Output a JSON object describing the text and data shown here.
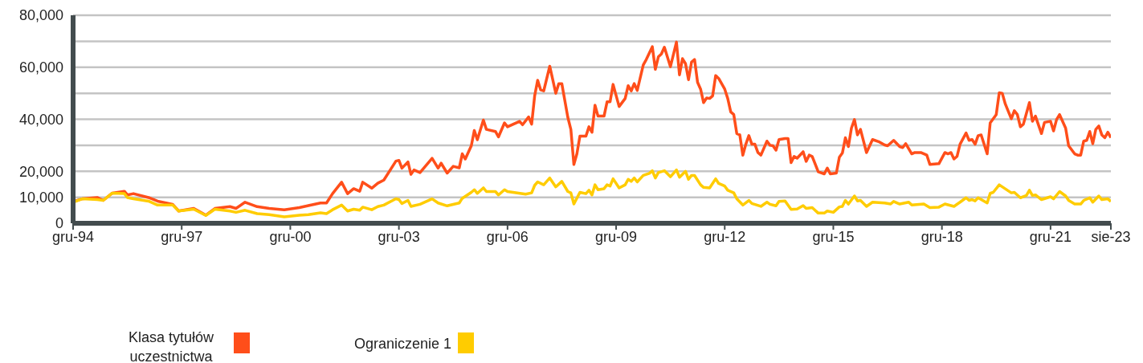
{
  "chart_data": {
    "type": "line",
    "xlim": [
      "1994-12",
      "2023-08"
    ],
    "ylim": [
      0,
      80000
    ],
    "xticks": [
      {
        "value": "1994-12",
        "label": "gru-94"
      },
      {
        "value": "1997-12",
        "label": "gru-97"
      },
      {
        "value": "2000-12",
        "label": "gru-00"
      },
      {
        "value": "2003-12",
        "label": "gru-03"
      },
      {
        "value": "2006-12",
        "label": "gru-06"
      },
      {
        "value": "2009-12",
        "label": "gru-09"
      },
      {
        "value": "2012-12",
        "label": "gru-12"
      },
      {
        "value": "2015-12",
        "label": "gru-15"
      },
      {
        "value": "2018-12",
        "label": "gru-18"
      },
      {
        "value": "2021-12",
        "label": "gru-21"
      },
      {
        "value": "2023-08",
        "label": "sie-23"
      }
    ],
    "yticks": [
      0,
      {
        "value": 10000,
        "label": "10,000"
      },
      {
        "value": 20000,
        "label": "20,000"
      },
      {
        "value": 30000,
        "label": null
      },
      {
        "value": 40000,
        "label": "40,000"
      },
      {
        "value": 50000,
        "label": null
      },
      {
        "value": 60000,
        "label": "60,000"
      },
      {
        "value": 70000,
        "label": null
      },
      {
        "value": 80000,
        "label": "80,000"
      }
    ],
    "grid": "y",
    "legend": "bottom",
    "marker": "none",
    "line_style": "solid",
    "series": [
      {
        "name": "Klasa tytułów uczestnictwa",
        "color": "#ff4e1a",
        "x": [
          "1994-12",
          "1995-03",
          "1995-08",
          "1995-10",
          "1996-01",
          "1996-05",
          "1996-06",
          "1996-08",
          "1997-01",
          "1997-04",
          "1997-09",
          "1997-11",
          "1998-04",
          "1998-08",
          "1998-11",
          "1999-04",
          "1999-06",
          "1999-09",
          "2000-01",
          "2000-05",
          "2000-10",
          "2001-03",
          "2001-06",
          "2001-10",
          "2001-12",
          "2002-02",
          "2002-05",
          "2002-07",
          "2002-09",
          "2002-11",
          "2002-12",
          "2003-03",
          "2003-05",
          "2003-07",
          "2003-11",
          "2003-12",
          "2004-01",
          "2004-03",
          "2004-04",
          "2004-05",
          "2004-07",
          "2004-11",
          "2005-01",
          "2005-02",
          "2005-04",
          "2005-06",
          "2005-08",
          "2005-09",
          "2005-10",
          "2005-12",
          "2006-01",
          "2006-02",
          "2006-04",
          "2006-05",
          "2006-08",
          "2006-09",
          "2006-11",
          "2006-12",
          "2007-04",
          "2007-05",
          "2007-07",
          "2007-08",
          "2007-09",
          "2007-10",
          "2007-11",
          "2007-12",
          "2008-02",
          "2008-04",
          "2008-05",
          "2008-06",
          "2008-08",
          "2008-09",
          "2008-10",
          "2008-11",
          "2008-12",
          "2009-02",
          "2009-03",
          "2009-04",
          "2009-05",
          "2009-06",
          "2009-08",
          "2009-09",
          "2009-10",
          "2009-11",
          "2010-01",
          "2010-03",
          "2010-04",
          "2010-05",
          "2010-06",
          "2010-07",
          "2010-09",
          "2010-10",
          "2010-12",
          "2011-01",
          "2011-02",
          "2011-03",
          "2011-04",
          "2011-06",
          "2011-08",
          "2011-09",
          "2011-10",
          "2011-11",
          "2011-12",
          "2012-01",
          "2012-02",
          "2012-03",
          "2012-04",
          "2012-05",
          "2012-06",
          "2012-07",
          "2012-08",
          "2012-09",
          "2012-10",
          "2012-12",
          "2013-01",
          "2013-02",
          "2013-03",
          "2013-04",
          "2013-05",
          "2013-06",
          "2013-07",
          "2013-08",
          "2013-09",
          "2013-10",
          "2013-11",
          "2013-12",
          "2014-02",
          "2014-03",
          "2014-04",
          "2014-05",
          "2014-06",
          "2014-08",
          "2014-09",
          "2014-10",
          "2014-11",
          "2014-12",
          "2015-02",
          "2015-03",
          "2015-04",
          "2015-05",
          "2015-07",
          "2015-09",
          "2015-10",
          "2015-11",
          "2016-01",
          "2016-02",
          "2016-03",
          "2016-04",
          "2016-05",
          "2016-06",
          "2016-07",
          "2016-08",
          "2016-09",
          "2016-11",
          "2017-01",
          "2017-03",
          "2017-05",
          "2017-06",
          "2017-08",
          "2017-10",
          "2017-11",
          "2017-12",
          "2018-02",
          "2018-03",
          "2018-05",
          "2018-07",
          "2018-08",
          "2018-11",
          "2019-01",
          "2019-02",
          "2019-03",
          "2019-04",
          "2019-05",
          "2019-06",
          "2019-08",
          "2019-09",
          "2019-10",
          "2019-11",
          "2019-12",
          "2020-01",
          "2020-03",
          "2020-04",
          "2020-06",
          "2020-07",
          "2020-08",
          "2020-09",
          "2020-11",
          "2020-12",
          "2021-01",
          "2021-02",
          "2021-03",
          "2021-05",
          "2021-06",
          "2021-07",
          "2021-09",
          "2021-10",
          "2021-12",
          "2022-01",
          "2022-02",
          "2022-03",
          "2022-05",
          "2022-06",
          "2022-08",
          "2022-09",
          "2022-10",
          "2022-11",
          "2022-12",
          "2023-01",
          "2023-02",
          "2023-03",
          "2023-04",
          "2023-05",
          "2023-06",
          "2023-07",
          "2023-08"
        ],
        "values": [
          8300,
          9400,
          9900,
          8800,
          11600,
          12300,
          10900,
          11400,
          9900,
          8500,
          7300,
          4700,
          5700,
          3100,
          5700,
          6400,
          5700,
          8100,
          6400,
          5700,
          5200,
          6000,
          6800,
          7800,
          7800,
          11400,
          15800,
          11400,
          13300,
          12300,
          15800,
          13500,
          15400,
          16600,
          23900,
          24200,
          21200,
          23600,
          18800,
          20500,
          19500,
          25000,
          21200,
          23100,
          19300,
          21900,
          21300,
          26700,
          24700,
          29800,
          35700,
          32100,
          39700,
          36100,
          35300,
          33200,
          38600,
          37100,
          39200,
          37900,
          40900,
          38100,
          49000,
          55000,
          51300,
          50900,
          60400,
          50000,
          53700,
          53700,
          40700,
          36100,
          22600,
          26700,
          33500,
          33500,
          37100,
          35000,
          45400,
          41200,
          41200,
          46700,
          46700,
          53400,
          44900,
          48000,
          52900,
          50900,
          53700,
          51100,
          60900,
          63000,
          67900,
          59200,
          64000,
          65100,
          67700,
          60200,
          69700,
          57100,
          63300,
          61400,
          55200,
          62000,
          63000,
          54200,
          51600,
          46400,
          48200,
          48000,
          49000,
          56800,
          55700,
          51600,
          48000,
          42800,
          41800,
          34500,
          34000,
          26200,
          30400,
          33700,
          30400,
          30400,
          27200,
          26200,
          31600,
          30000,
          29800,
          28100,
          32200,
          32600,
          32600,
          23300,
          25700,
          25000,
          27500,
          23800,
          26200,
          25700,
          19800,
          19000,
          21200,
          19000,
          19300,
          25400,
          27000,
          32900,
          29500,
          36600,
          39900,
          34000,
          36100,
          27200,
          32200,
          31400,
          30100,
          29800,
          31900,
          29500,
          29100,
          30600,
          26700,
          27200,
          27200,
          26200,
          22600,
          22900,
          27200,
          26700,
          27200,
          24700,
          25700,
          30400,
          34700,
          31900,
          32200,
          30400,
          33700,
          34000,
          26700,
          38600,
          41800,
          50200,
          50000,
          45900,
          40200,
          43300,
          41800,
          37100,
          38100,
          46400,
          39200,
          41200,
          34500,
          38800,
          39200,
          35500,
          39900,
          41800,
          36600,
          29800,
          26700,
          26200,
          26200,
          31600,
          31900,
          35300,
          30600,
          36100,
          37400,
          34000,
          32900,
          35000,
          32900
        ]
      },
      {
        "name": "Ograniczenie 1",
        "color": "#ffcc00",
        "x": [
          "1994-12",
          "1995-03",
          "1995-08",
          "1995-10",
          "1996-01",
          "1996-05",
          "1996-06",
          "1996-08",
          "1997-01",
          "1997-04",
          "1997-09",
          "1997-11",
          "1998-04",
          "1998-08",
          "1998-11",
          "1999-04",
          "1999-06",
          "1999-09",
          "2000-01",
          "2000-05",
          "2000-10",
          "2001-03",
          "2001-06",
          "2001-10",
          "2001-12",
          "2002-02",
          "2002-05",
          "2002-07",
          "2002-09",
          "2002-11",
          "2002-12",
          "2003-03",
          "2003-05",
          "2003-07",
          "2003-11",
          "2003-12",
          "2004-01",
          "2004-03",
          "2004-04",
          "2004-07",
          "2004-11",
          "2005-01",
          "2005-04",
          "2005-08",
          "2005-09",
          "2005-12",
          "2006-01",
          "2006-02",
          "2006-04",
          "2006-05",
          "2006-08",
          "2006-09",
          "2006-11",
          "2006-12",
          "2007-06",
          "2007-08",
          "2007-09",
          "2007-10",
          "2007-12",
          "2008-02",
          "2008-04",
          "2008-06",
          "2008-08",
          "2008-09",
          "2008-10",
          "2008-12",
          "2009-02",
          "2009-03",
          "2009-04",
          "2009-05",
          "2009-06",
          "2009-08",
          "2009-09",
          "2009-10",
          "2009-11",
          "2010-01",
          "2010-03",
          "2010-04",
          "2010-05",
          "2010-06",
          "2010-07",
          "2010-09",
          "2010-11",
          "2010-12",
          "2011-01",
          "2011-02",
          "2011-04",
          "2011-06",
          "2011-08",
          "2011-09",
          "2011-11",
          "2011-12",
          "2012-01",
          "2012-02",
          "2012-04",
          "2012-05",
          "2012-07",
          "2012-09",
          "2012-10",
          "2012-12",
          "2013-01",
          "2013-03",
          "2013-04",
          "2013-06",
          "2013-08",
          "2013-09",
          "2013-12",
          "2014-02",
          "2014-03",
          "2014-05",
          "2014-06",
          "2014-08",
          "2014-10",
          "2014-12",
          "2015-02",
          "2015-03",
          "2015-05",
          "2015-07",
          "2015-09",
          "2015-10",
          "2015-12",
          "2016-02",
          "2016-03",
          "2016-04",
          "2016-05",
          "2016-07",
          "2016-08",
          "2016-09",
          "2016-11",
          "2017-01",
          "2017-05",
          "2017-07",
          "2017-08",
          "2017-10",
          "2018-01",
          "2018-02",
          "2018-06",
          "2018-08",
          "2018-11",
          "2019-01",
          "2019-02",
          "2019-04",
          "2019-06",
          "2019-08",
          "2019-09",
          "2019-10",
          "2019-11",
          "2019-12",
          "2020-03",
          "2020-04",
          "2020-05",
          "2020-07",
          "2020-08",
          "2020-11",
          "2020-12",
          "2021-02",
          "2021-04",
          "2021-05",
          "2021-06",
          "2021-07",
          "2021-09",
          "2021-12",
          "2022-01",
          "2022-03",
          "2022-05",
          "2022-06",
          "2022-08",
          "2022-10",
          "2022-11",
          "2023-01",
          "2023-02",
          "2023-04",
          "2023-05",
          "2023-07",
          "2023-08"
        ],
        "values": [
          8100,
          9400,
          9100,
          8800,
          11600,
          11400,
          9900,
          9400,
          8500,
          7000,
          7000,
          4700,
          5400,
          3000,
          5400,
          4700,
          4200,
          5000,
          3700,
          3300,
          2500,
          3100,
          3300,
          4000,
          3700,
          5200,
          7000,
          4700,
          5400,
          5000,
          6200,
          5200,
          6400,
          7000,
          9400,
          9100,
          7600,
          8800,
          6500,
          7300,
          9400,
          7800,
          6700,
          7800,
          9600,
          11900,
          12900,
          11500,
          13600,
          12200,
          12200,
          10900,
          12900,
          12200,
          11200,
          11700,
          14600,
          15900,
          14800,
          17400,
          14000,
          16100,
          12200,
          11700,
          7400,
          11900,
          11400,
          12700,
          10900,
          14800,
          12900,
          13300,
          14800,
          14300,
          17100,
          13600,
          14800,
          16900,
          16100,
          17400,
          15900,
          18400,
          19200,
          20200,
          17400,
          19500,
          20200,
          17900,
          20500,
          17700,
          20000,
          16900,
          18400,
          18400,
          14800,
          13800,
          13600,
          17100,
          15300,
          14300,
          12700,
          11700,
          9400,
          7000,
          8800,
          7600,
          6500,
          8100,
          7300,
          6700,
          8400,
          8600,
          5300,
          5500,
          6800,
          5700,
          6000,
          3900,
          3900,
          4700,
          4200,
          6300,
          6500,
          8800,
          7400,
          10500,
          8600,
          8800,
          6500,
          8100,
          7800,
          7400,
          8400,
          7400,
          8100,
          7000,
          7400,
          6000,
          6200,
          7400,
          7100,
          6500,
          8100,
          9800,
          8800,
          9100,
          8600,
          9800,
          7800,
          11500,
          11900,
          14800,
          14000,
          11700,
          11900,
          9800,
          10700,
          12700,
          10700,
          10900,
          9100,
          10200,
          9400,
          12200,
          10500,
          8800,
          7400,
          7400,
          8800,
          9800,
          8100,
          10500,
          9100,
          9400,
          8400
        ]
      }
    ]
  }
}
